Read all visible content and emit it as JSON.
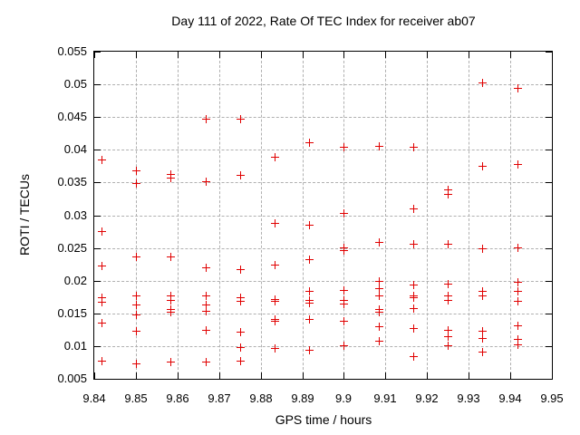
{
  "chart_data": {
    "type": "scatter",
    "title": "Day 111 of 2022, Rate Of TEC Index for receiver ab07",
    "xlabel": "GPS time / hours",
    "ylabel": "ROTI / TECUs",
    "xlim": [
      9.84,
      9.95
    ],
    "ylim": [
      0.005,
      0.055
    ],
    "xticks": [
      9.84,
      9.85,
      9.86,
      9.87,
      9.88,
      9.89,
      9.9,
      9.91,
      9.92,
      9.93,
      9.94,
      9.95
    ],
    "xtick_labels": [
      "9.84",
      "9.85",
      "9.86",
      "9.87",
      "9.88",
      "9.89",
      "9.9",
      "9.91",
      "9.92",
      "9.93",
      "9.94",
      "9.95"
    ],
    "yticks": [
      0.005,
      0.01,
      0.015,
      0.02,
      0.025,
      0.03,
      0.035,
      0.04,
      0.045,
      0.05,
      0.055
    ],
    "ytick_labels": [
      "0.005",
      "0.01",
      "0.015",
      "0.02",
      "0.025",
      "0.03",
      "0.035",
      "0.04",
      "0.045",
      "0.05",
      "0.055"
    ],
    "grid": true,
    "legend": "none",
    "marker": "plus",
    "marker_color": "#e00000",
    "grid_color": "#b0b0b0",
    "axis_color": "#000000",
    "background_color": "#ffffff",
    "series": [
      {
        "name": "ROTI",
        "points": [
          [
            9.8417,
            0.0385
          ],
          [
            9.8417,
            0.0276
          ],
          [
            9.8417,
            0.0223
          ],
          [
            9.8417,
            0.0174
          ],
          [
            9.8417,
            0.0168
          ],
          [
            9.8417,
            0.0136
          ],
          [
            9.8417,
            0.0078
          ],
          [
            9.85,
            0.0368
          ],
          [
            9.85,
            0.0349
          ],
          [
            9.85,
            0.0237
          ],
          [
            9.85,
            0.0178
          ],
          [
            9.85,
            0.0164
          ],
          [
            9.85,
            0.0148
          ],
          [
            9.85,
            0.0124
          ],
          [
            9.85,
            0.0074
          ],
          [
            9.8583,
            0.0363
          ],
          [
            9.8583,
            0.0357
          ],
          [
            9.8583,
            0.0237
          ],
          [
            9.8583,
            0.0177
          ],
          [
            9.8583,
            0.0171
          ],
          [
            9.8583,
            0.0157
          ],
          [
            9.8583,
            0.0153
          ],
          [
            9.8583,
            0.0076
          ],
          [
            9.8667,
            0.0448
          ],
          [
            9.8667,
            0.0352
          ],
          [
            9.8667,
            0.0221
          ],
          [
            9.8667,
            0.0177
          ],
          [
            9.8667,
            0.0164
          ],
          [
            9.8667,
            0.0154
          ],
          [
            9.8667,
            0.0125
          ],
          [
            9.8667,
            0.0076
          ],
          [
            9.875,
            0.0448
          ],
          [
            9.875,
            0.0362
          ],
          [
            9.875,
            0.0218
          ],
          [
            9.875,
            0.0175
          ],
          [
            9.875,
            0.0169
          ],
          [
            9.875,
            0.0122
          ],
          [
            9.875,
            0.0099
          ],
          [
            9.875,
            0.0078
          ],
          [
            9.8833,
            0.0389
          ],
          [
            9.8833,
            0.0288
          ],
          [
            9.8833,
            0.0224
          ],
          [
            9.8833,
            0.0172
          ],
          [
            9.8833,
            0.0169
          ],
          [
            9.8833,
            0.0141
          ],
          [
            9.8833,
            0.0138
          ],
          [
            9.8833,
            0.0097
          ],
          [
            9.8917,
            0.0411
          ],
          [
            9.8917,
            0.0285
          ],
          [
            9.8917,
            0.0233
          ],
          [
            9.8917,
            0.0185
          ],
          [
            9.8917,
            0.0171
          ],
          [
            9.8917,
            0.0166
          ],
          [
            9.8917,
            0.0142
          ],
          [
            9.8917,
            0.0094
          ],
          [
            9.9,
            0.0404
          ],
          [
            9.9,
            0.0303
          ],
          [
            9.9,
            0.0251
          ],
          [
            9.9,
            0.0246
          ],
          [
            9.9,
            0.0186
          ],
          [
            9.9,
            0.017
          ],
          [
            9.9,
            0.0165
          ],
          [
            9.9,
            0.0139
          ],
          [
            9.9,
            0.0101
          ],
          [
            9.9083,
            0.0406
          ],
          [
            9.9083,
            0.0259
          ],
          [
            9.9083,
            0.0199
          ],
          [
            9.9083,
            0.0188
          ],
          [
            9.9083,
            0.0177
          ],
          [
            9.9083,
            0.0157
          ],
          [
            9.9083,
            0.0153
          ],
          [
            9.9083,
            0.0131
          ],
          [
            9.9083,
            0.0108
          ],
          [
            9.9167,
            0.0405
          ],
          [
            9.9167,
            0.031
          ],
          [
            9.9167,
            0.0256
          ],
          [
            9.9167,
            0.0194
          ],
          [
            9.9167,
            0.0177
          ],
          [
            9.9167,
            0.0174
          ],
          [
            9.9167,
            0.0158
          ],
          [
            9.9167,
            0.0128
          ],
          [
            9.9167,
            0.0085
          ],
          [
            9.925,
            0.034
          ],
          [
            9.925,
            0.0332
          ],
          [
            9.925,
            0.0257
          ],
          [
            9.925,
            0.0196
          ],
          [
            9.925,
            0.0177
          ],
          [
            9.925,
            0.0171
          ],
          [
            9.925,
            0.0125
          ],
          [
            9.925,
            0.0115
          ],
          [
            9.925,
            0.0101
          ],
          [
            9.9333,
            0.0503
          ],
          [
            9.9333,
            0.0376
          ],
          [
            9.9333,
            0.025
          ],
          [
            9.9333,
            0.0184
          ],
          [
            9.9333,
            0.0178
          ],
          [
            9.9333,
            0.0124
          ],
          [
            9.9333,
            0.0113
          ],
          [
            9.9333,
            0.0091
          ],
          [
            9.9417,
            0.0494
          ],
          [
            9.9417,
            0.0378
          ],
          [
            9.9417,
            0.0251
          ],
          [
            9.9417,
            0.0198
          ],
          [
            9.9417,
            0.0185
          ],
          [
            9.9417,
            0.0169
          ],
          [
            9.9417,
            0.0132
          ],
          [
            9.9417,
            0.0111
          ],
          [
            9.9417,
            0.0103
          ]
        ]
      }
    ]
  }
}
